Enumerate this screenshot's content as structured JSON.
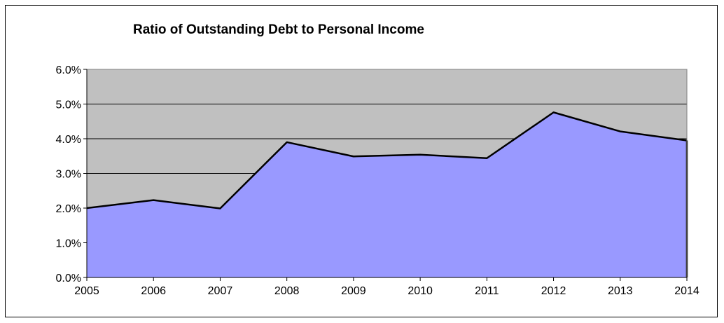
{
  "chart_data": {
    "type": "area",
    "title": "Ratio of Outstanding Debt to Personal Income",
    "xlabel": "",
    "ylabel": "",
    "x": [
      "2005",
      "2006",
      "2007",
      "2008",
      "2009",
      "2010",
      "2011",
      "2012",
      "2013",
      "2014"
    ],
    "series": [
      {
        "values": [
          2.0,
          2.23,
          1.99,
          3.9,
          3.49,
          3.54,
          3.44,
          4.76,
          4.21,
          3.95
        ]
      }
    ],
    "ylim": [
      0,
      6
    ],
    "yticks": [
      0,
      1,
      2,
      3,
      4,
      5,
      6
    ],
    "ytick_labels": [
      "0.0%",
      "1.0%",
      "2.0%",
      "3.0%",
      "4.0%",
      "5.0%",
      "6.0%"
    ],
    "grid": true,
    "legend": "none",
    "colors": {
      "area_fill": "#9999ff",
      "plot_background": "#c0c0c0",
      "line": "#000000",
      "gridline": "#000000"
    }
  }
}
